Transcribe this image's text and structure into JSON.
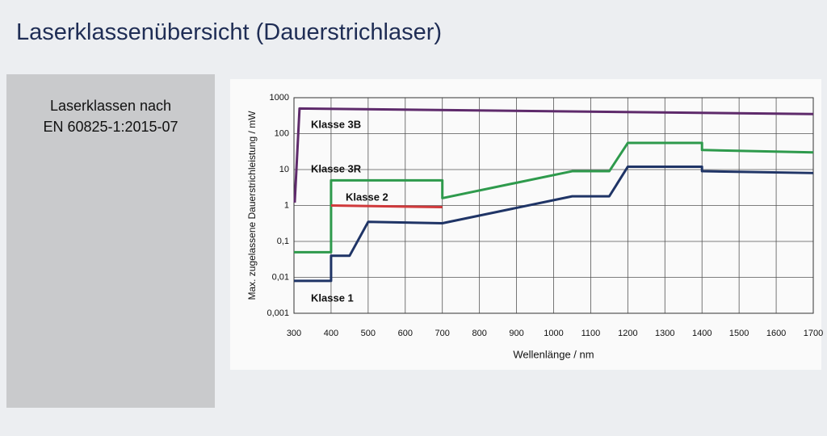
{
  "page_title": "Laserklassenübersicht (Dauerstrichlaser)",
  "side_box": {
    "text": [
      "Laserklassen nach",
      "EN 60825-1:2015-07"
    ]
  },
  "chart_data": {
    "type": "line",
    "xlabel": "Wellenlänge / nm",
    "ylabel": "Max. zugelassene Dauerstrichleistung / mW",
    "xlim": [
      300,
      1700
    ],
    "xticks": [
      300,
      400,
      500,
      600,
      700,
      800,
      900,
      1000,
      1100,
      1200,
      1300,
      1400,
      1500,
      1600,
      1700
    ],
    "ylim": [
      0.001,
      1000
    ],
    "yticks": [
      {
        "value": 0.001,
        "label": "0,001"
      },
      {
        "value": 0.01,
        "label": "0,01"
      },
      {
        "value": 0.1,
        "label": "0,1"
      },
      1,
      10,
      100,
      1000
    ],
    "log_y": true,
    "grid": true,
    "series": [
      {
        "name": "Klasse 3B",
        "color": "#5e2a6b",
        "x": [
          302,
          315,
          1700
        ],
        "values": [
          1.2,
          500,
          350
        ]
      },
      {
        "name": "Klasse 3R",
        "color": "#2e9a4c",
        "x": [
          300,
          400,
          400,
          700,
          700,
          1050,
          1150,
          1200,
          1400,
          1400,
          1700
        ],
        "values": [
          0.05,
          0.05,
          5,
          5,
          1.6,
          9,
          9,
          55,
          55,
          35,
          30
        ]
      },
      {
        "name": "Klasse 2",
        "color": "#d0393b",
        "x": [
          400,
          700
        ],
        "values": [
          1,
          0.9
        ]
      },
      {
        "name": "Klasse 1",
        "color": "#1f3466",
        "x": [
          300,
          400,
          400,
          450,
          500,
          700,
          1050,
          1150,
          1200,
          1400,
          1400,
          1700
        ],
        "values": [
          0.008,
          0.008,
          0.04,
          0.04,
          0.35,
          0.32,
          1.8,
          1.8,
          12,
          12,
          9,
          8
        ]
      }
    ]
  }
}
